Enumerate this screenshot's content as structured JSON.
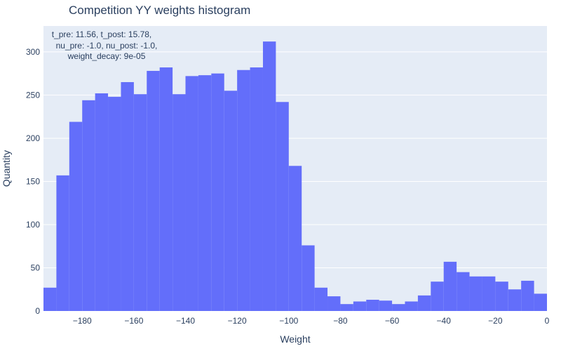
{
  "chart_data": {
    "type": "bar",
    "title": "Competition YY weights histogram",
    "xlabel": "Weight",
    "ylabel": "Quantity",
    "annotation_lines": [
      "t_pre: 11.56, t_post: 15.78,",
      "nu_pre: -1.0, nu_post: -1.0,",
      "weight_decay: 9e-05"
    ],
    "xlim": [
      -195,
      0
    ],
    "ylim": [
      0,
      330
    ],
    "x_ticks": [
      -180,
      -160,
      -140,
      -120,
      -100,
      -80,
      -60,
      -40,
      -20,
      0
    ],
    "x_tick_labels": [
      "−180",
      "−160",
      "−140",
      "−120",
      "−100",
      "−80",
      "−60",
      "−40",
      "−20",
      "0"
    ],
    "y_ticks": [
      0,
      50,
      100,
      150,
      200,
      250,
      300
    ],
    "bin_width": 5,
    "bin_starts": [
      -195,
      -190,
      -185,
      -180,
      -175,
      -170,
      -165,
      -160,
      -155,
      -150,
      -145,
      -140,
      -135,
      -130,
      -125,
      -120,
      -115,
      -110,
      -105,
      -100,
      -95,
      -90,
      -85,
      -80,
      -75,
      -70,
      -65,
      -60,
      -55,
      -50,
      -45,
      -40,
      -35,
      -30,
      -25,
      -20,
      -15,
      -10,
      -5
    ],
    "values": [
      27,
      157,
      219,
      244,
      252,
      248,
      265,
      251,
      278,
      282,
      251,
      272,
      273,
      275,
      255,
      279,
      282,
      312,
      242,
      168,
      76,
      27,
      17,
      8,
      11,
      13,
      12,
      8,
      11,
      18,
      34,
      57,
      45,
      40,
      40,
      34,
      25,
      35,
      20
    ],
    "grid": true,
    "colors": {
      "bar": "#636efa",
      "plot_bg": "#e5ecf6",
      "grid": "#ffffff",
      "text": "#2a3f5f"
    }
  }
}
